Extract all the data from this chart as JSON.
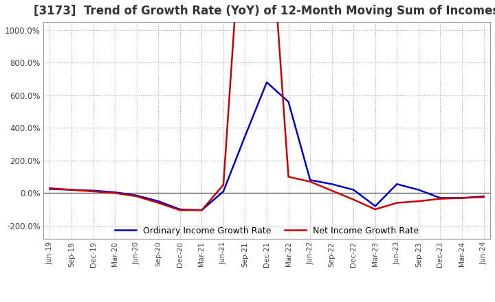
{
  "title": "[3173]  Trend of Growth Rate (YoY) of 12-Month Moving Sum of Incomes",
  "title_fontsize": 12,
  "background_color": "#ffffff",
  "grid_color": "#aaaaaa",
  "ylim": [
    -280,
    1050
  ],
  "yticks": [
    -200,
    0,
    200,
    400,
    600,
    800,
    1000
  ],
  "ytick_labels": [
    "-200.0%",
    "0.0%",
    "200.0%",
    "400.0%",
    "600.0%",
    "800.0%",
    "1000.0%"
  ],
  "dates": [
    "Jun-19",
    "Sep-19",
    "Dec-19",
    "Mar-20",
    "Jun-20",
    "Sep-20",
    "Dec-20",
    "Mar-21",
    "Jun-21",
    "Sep-21",
    "Dec-21",
    "Mar-22",
    "Jun-22",
    "Sep-22",
    "Dec-22",
    "Mar-23",
    "Jun-23",
    "Sep-23",
    "Dec-23",
    "Mar-24",
    "Jun-24"
  ],
  "ordinary_income_growth": [
    25,
    20,
    15,
    5,
    -15,
    -50,
    -100,
    -105,
    10,
    350,
    680,
    560,
    80,
    55,
    20,
    -80,
    55,
    20,
    -30,
    -30,
    -20
  ],
  "net_income_growth": [
    30,
    20,
    10,
    0,
    -20,
    -60,
    -105,
    -105,
    50,
    2000,
    2000,
    100,
    70,
    15,
    -40,
    -100,
    -60,
    -50,
    -35,
    -30,
    -25
  ],
  "ordinary_color": "#0000cc",
  "net_color": "#cc0000",
  "line_width": 1.8,
  "legend_labels": [
    "Ordinary Income Growth Rate",
    "Net Income Growth Rate"
  ],
  "legend_loc": "lower center",
  "legend_ncol": 2
}
